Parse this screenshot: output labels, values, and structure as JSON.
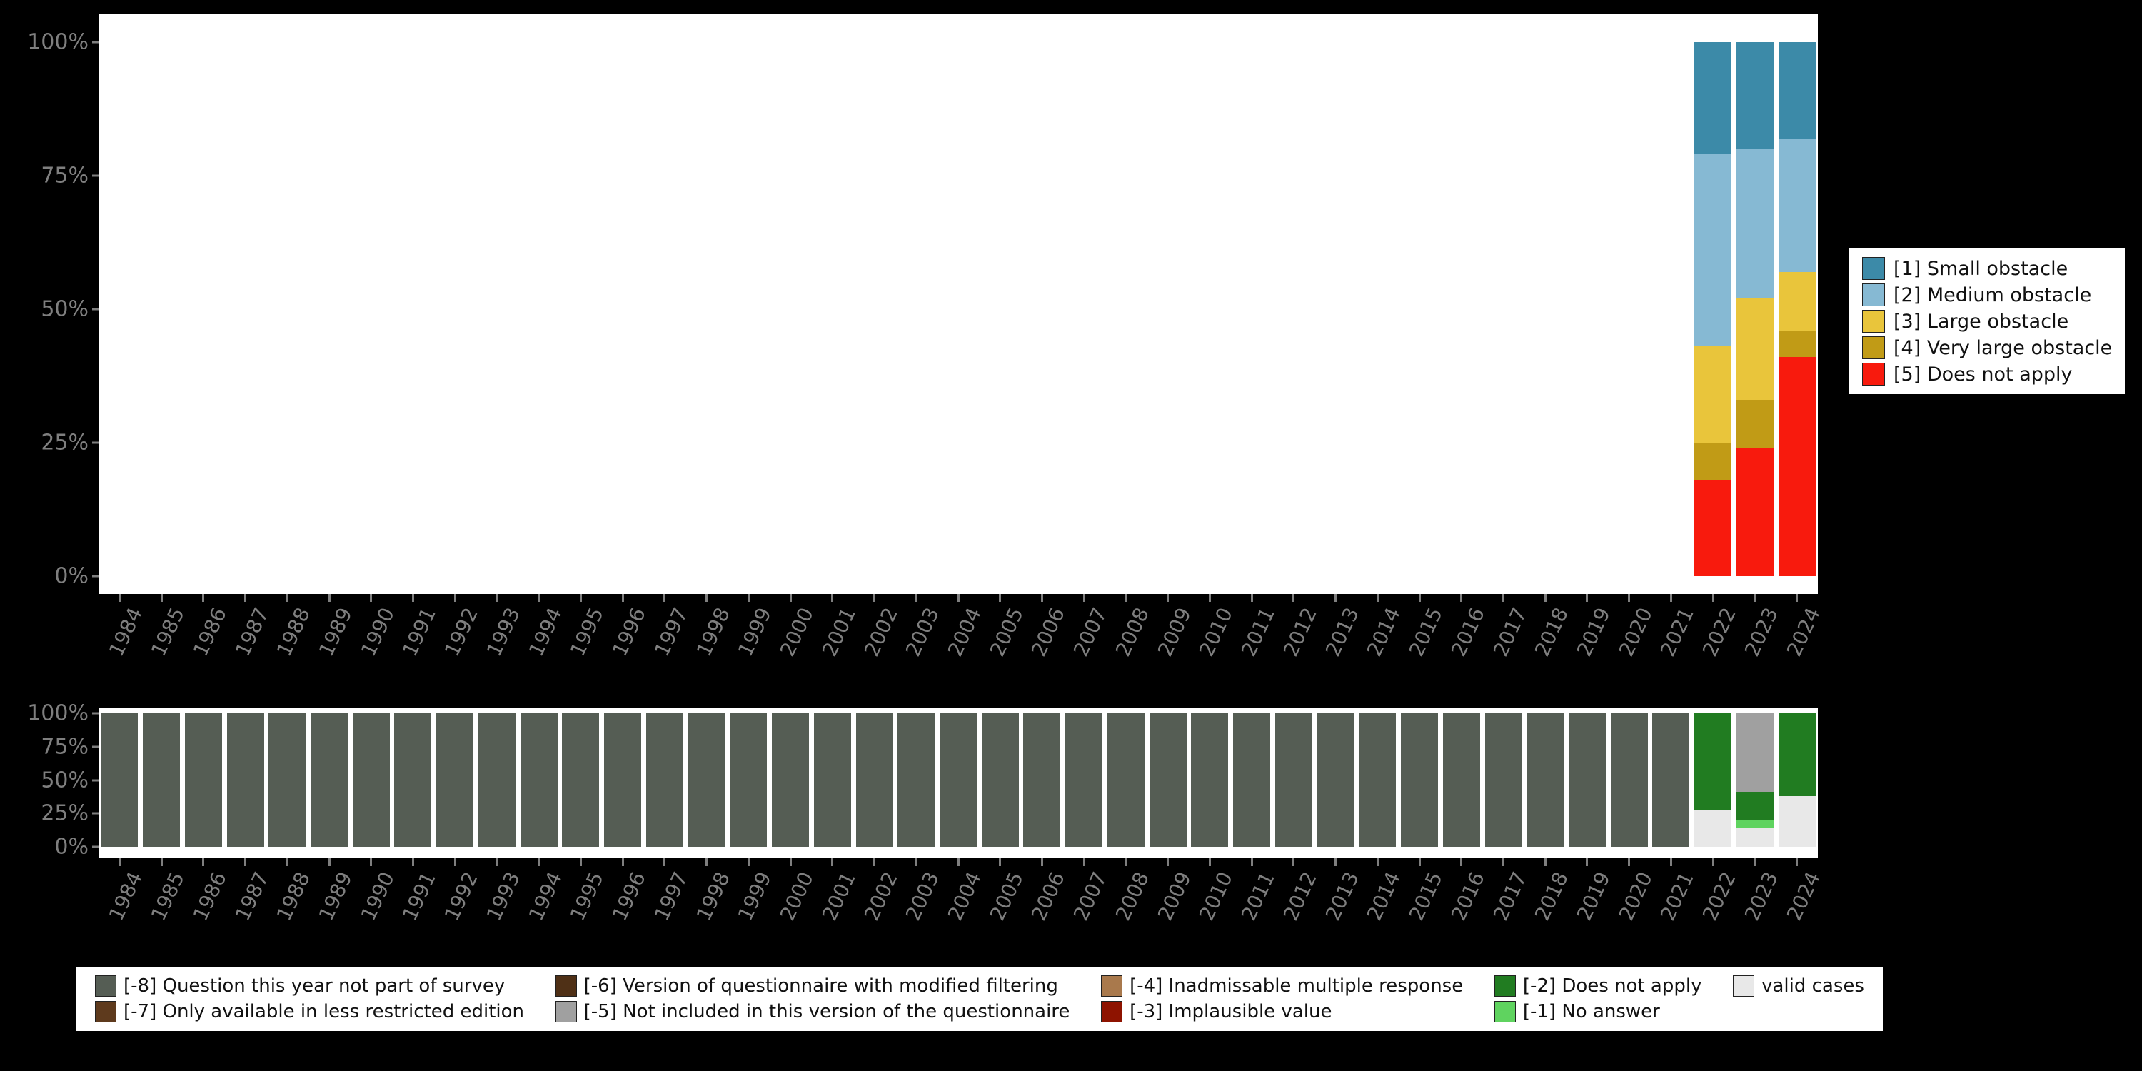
{
  "page": {
    "background_color": "#000000",
    "plot_background_color": "#ffffff",
    "axis_text_color": "#7f7f7f"
  },
  "chart_data": [
    {
      "id": "value-distribution",
      "type": "bar",
      "stacked": true,
      "unit": "percent",
      "ylim": [
        0,
        100
      ],
      "grid": false,
      "y_ticks": [
        "100%",
        "75%",
        "50%",
        "25%",
        "0%"
      ],
      "legend_position": "right",
      "categories": [
        "1984",
        "1985",
        "1986",
        "1987",
        "1988",
        "1989",
        "1990",
        "1991",
        "1992",
        "1993",
        "1994",
        "1995",
        "1996",
        "1997",
        "1998",
        "1999",
        "2000",
        "2001",
        "2002",
        "2003",
        "2004",
        "2005",
        "2006",
        "2007",
        "2008",
        "2009",
        "2010",
        "2011",
        "2012",
        "2013",
        "2014",
        "2015",
        "2016",
        "2017",
        "2018",
        "2019",
        "2020",
        "2021",
        "2022",
        "2023",
        "2024"
      ],
      "series": [
        {
          "name": "[1] Small obstacle",
          "color": "#3c8aa8",
          "values": [
            0,
            0,
            0,
            0,
            0,
            0,
            0,
            0,
            0,
            0,
            0,
            0,
            0,
            0,
            0,
            0,
            0,
            0,
            0,
            0,
            0,
            0,
            0,
            0,
            0,
            0,
            0,
            0,
            0,
            0,
            0,
            0,
            0,
            0,
            0,
            0,
            0,
            0,
            21,
            20,
            18
          ]
        },
        {
          "name": "[2] Medium obstacle",
          "color": "#86b9d3",
          "values": [
            0,
            0,
            0,
            0,
            0,
            0,
            0,
            0,
            0,
            0,
            0,
            0,
            0,
            0,
            0,
            0,
            0,
            0,
            0,
            0,
            0,
            0,
            0,
            0,
            0,
            0,
            0,
            0,
            0,
            0,
            0,
            0,
            0,
            0,
            0,
            0,
            0,
            0,
            36,
            28,
            25
          ]
        },
        {
          "name": "[3] Large obstacle",
          "color": "#e9c53b",
          "values": [
            0,
            0,
            0,
            0,
            0,
            0,
            0,
            0,
            0,
            0,
            0,
            0,
            0,
            0,
            0,
            0,
            0,
            0,
            0,
            0,
            0,
            0,
            0,
            0,
            0,
            0,
            0,
            0,
            0,
            0,
            0,
            0,
            0,
            0,
            0,
            0,
            0,
            0,
            18,
            19,
            11
          ]
        },
        {
          "name": "[4] Very large obstacle",
          "color": "#c19b16",
          "values": [
            0,
            0,
            0,
            0,
            0,
            0,
            0,
            0,
            0,
            0,
            0,
            0,
            0,
            0,
            0,
            0,
            0,
            0,
            0,
            0,
            0,
            0,
            0,
            0,
            0,
            0,
            0,
            0,
            0,
            0,
            0,
            0,
            0,
            0,
            0,
            0,
            0,
            0,
            7,
            9,
            5
          ]
        },
        {
          "name": "[5] Does not apply",
          "color": "#f81a0d",
          "values": [
            0,
            0,
            0,
            0,
            0,
            0,
            0,
            0,
            0,
            0,
            0,
            0,
            0,
            0,
            0,
            0,
            0,
            0,
            0,
            0,
            0,
            0,
            0,
            0,
            0,
            0,
            0,
            0,
            0,
            0,
            0,
            0,
            0,
            0,
            0,
            0,
            0,
            0,
            18,
            24,
            41
          ]
        }
      ]
    },
    {
      "id": "missing-values",
      "type": "bar",
      "stacked": true,
      "unit": "percent",
      "ylim": [
        0,
        100
      ],
      "grid": false,
      "y_ticks": [
        "100%",
        "75%",
        "50%",
        "25%",
        "0%"
      ],
      "legend_position": "bottom",
      "categories": [
        "1984",
        "1985",
        "1986",
        "1987",
        "1988",
        "1989",
        "1990",
        "1991",
        "1992",
        "1993",
        "1994",
        "1995",
        "1996",
        "1997",
        "1998",
        "1999",
        "2000",
        "2001",
        "2002",
        "2003",
        "2004",
        "2005",
        "2006",
        "2007",
        "2008",
        "2009",
        "2010",
        "2011",
        "2012",
        "2013",
        "2014",
        "2015",
        "2016",
        "2017",
        "2018",
        "2019",
        "2020",
        "2021",
        "2022",
        "2023",
        "2024"
      ],
      "series": [
        {
          "name": "[-8] Question this year not part of survey",
          "color": "#555d54",
          "values": [
            100,
            100,
            100,
            100,
            100,
            100,
            100,
            100,
            100,
            100,
            100,
            100,
            100,
            100,
            100,
            100,
            100,
            100,
            100,
            100,
            100,
            100,
            100,
            100,
            100,
            100,
            100,
            100,
            100,
            100,
            100,
            100,
            100,
            100,
            100,
            100,
            100,
            100,
            0,
            0,
            0
          ]
        },
        {
          "name": "[-7] Only available in less restricted edition",
          "color": "#5e3a1d",
          "values": [
            0,
            0,
            0,
            0,
            0,
            0,
            0,
            0,
            0,
            0,
            0,
            0,
            0,
            0,
            0,
            0,
            0,
            0,
            0,
            0,
            0,
            0,
            0,
            0,
            0,
            0,
            0,
            0,
            0,
            0,
            0,
            0,
            0,
            0,
            0,
            0,
            0,
            0,
            0,
            0,
            0
          ]
        },
        {
          "name": "[-6] Version of questionnaire with modified filtering",
          "color": "#4f3016",
          "values": [
            0,
            0,
            0,
            0,
            0,
            0,
            0,
            0,
            0,
            0,
            0,
            0,
            0,
            0,
            0,
            0,
            0,
            0,
            0,
            0,
            0,
            0,
            0,
            0,
            0,
            0,
            0,
            0,
            0,
            0,
            0,
            0,
            0,
            0,
            0,
            0,
            0,
            0,
            0,
            0,
            0
          ]
        },
        {
          "name": "[-5] Not included in this version of the questionnaire",
          "color": "#a0a0a0",
          "values": [
            0,
            0,
            0,
            0,
            0,
            0,
            0,
            0,
            0,
            0,
            0,
            0,
            0,
            0,
            0,
            0,
            0,
            0,
            0,
            0,
            0,
            0,
            0,
            0,
            0,
            0,
            0,
            0,
            0,
            0,
            0,
            0,
            0,
            0,
            0,
            0,
            0,
            0,
            0,
            59,
            0
          ]
        },
        {
          "name": "[-4] Inadmissable multiple response",
          "color": "#a9794c",
          "values": [
            0,
            0,
            0,
            0,
            0,
            0,
            0,
            0,
            0,
            0,
            0,
            0,
            0,
            0,
            0,
            0,
            0,
            0,
            0,
            0,
            0,
            0,
            0,
            0,
            0,
            0,
            0,
            0,
            0,
            0,
            0,
            0,
            0,
            0,
            0,
            0,
            0,
            0,
            0,
            0,
            0
          ]
        },
        {
          "name": "[-3] Implausible value",
          "color": "#8e1300",
          "values": [
            0,
            0,
            0,
            0,
            0,
            0,
            0,
            0,
            0,
            0,
            0,
            0,
            0,
            0,
            0,
            0,
            0,
            0,
            0,
            0,
            0,
            0,
            0,
            0,
            0,
            0,
            0,
            0,
            0,
            0,
            0,
            0,
            0,
            0,
            0,
            0,
            0,
            0,
            0,
            0,
            0
          ]
        },
        {
          "name": "[-2] Does not apply",
          "color": "#217c21",
          "values": [
            0,
            0,
            0,
            0,
            0,
            0,
            0,
            0,
            0,
            0,
            0,
            0,
            0,
            0,
            0,
            0,
            0,
            0,
            0,
            0,
            0,
            0,
            0,
            0,
            0,
            0,
            0,
            0,
            0,
            0,
            0,
            0,
            0,
            0,
            0,
            0,
            0,
            0,
            72,
            21,
            62
          ]
        },
        {
          "name": "[-1] No answer",
          "color": "#5fd35f",
          "values": [
            0,
            0,
            0,
            0,
            0,
            0,
            0,
            0,
            0,
            0,
            0,
            0,
            0,
            0,
            0,
            0,
            0,
            0,
            0,
            0,
            0,
            0,
            0,
            0,
            0,
            0,
            0,
            0,
            0,
            0,
            0,
            0,
            0,
            0,
            0,
            0,
            0,
            0,
            0,
            6,
            0
          ]
        },
        {
          "name": "valid cases",
          "color": "#e8e8e8",
          "values": [
            0,
            0,
            0,
            0,
            0,
            0,
            0,
            0,
            0,
            0,
            0,
            0,
            0,
            0,
            0,
            0,
            0,
            0,
            0,
            0,
            0,
            0,
            0,
            0,
            0,
            0,
            0,
            0,
            0,
            0,
            0,
            0,
            0,
            0,
            0,
            0,
            0,
            0,
            28,
            14,
            38
          ]
        }
      ]
    }
  ]
}
